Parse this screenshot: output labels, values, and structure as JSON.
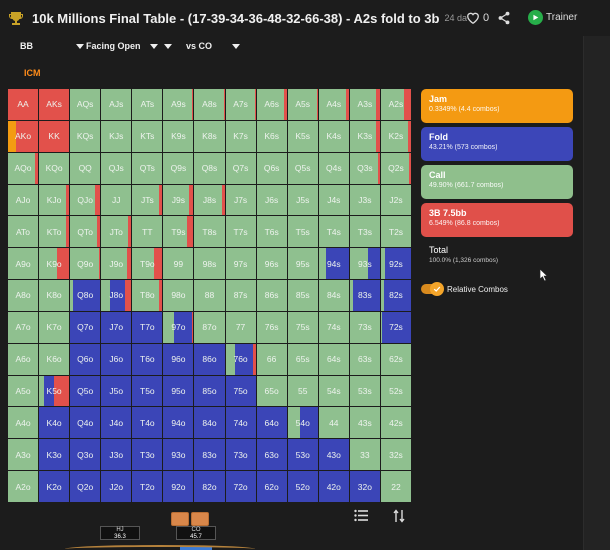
{
  "header": {
    "title": "10k Millions Final Table - (17-39-34-36-48-32-66-38) - A2s fold to 3b",
    "age": "24 da",
    "like_count": "0",
    "trainer_label": "Trainer"
  },
  "filters": [
    {
      "label": "BB"
    },
    {
      "label": "Facing Open"
    },
    {
      "label": "vs CO"
    }
  ],
  "mode_label": "ICM",
  "colors": {
    "jam": "#f39c12",
    "fold": "#3b45b7",
    "call": "#8fc08f",
    "raise": "#e2514b"
  },
  "actions": [
    {
      "name": "Jam",
      "stats": "0.3349% (4.4 combos)",
      "color": "#f49a12"
    },
    {
      "name": "Fold",
      "stats": "43.21% (573 combos)",
      "color": "#3c46b8"
    },
    {
      "name": "Call",
      "stats": "49.90% (661.7 combos)",
      "color": "#8fbf8c"
    },
    {
      "name": "3B 7.5bb",
      "stats": "6.549% (86.8 combos)",
      "color": "#e0504a"
    }
  ],
  "total": {
    "name": "Total",
    "stats": "100.0% (1,326 combos)"
  },
  "toggle": {
    "label": "Relative Combos",
    "on": true
  },
  "grid": {
    "rows": [
      [
        "AA",
        "AKs",
        "AQs",
        "AJs",
        "ATs",
        "A9s",
        "A8s",
        "A7s",
        "A6s",
        "A5s",
        "A4s",
        "A3s",
        "A2s"
      ],
      [
        "AKo",
        "KK",
        "KQs",
        "KJs",
        "KTs",
        "K9s",
        "K8s",
        "K7s",
        "K6s",
        "K5s",
        "K4s",
        "K3s",
        "K2s"
      ],
      [
        "AQo",
        "KQo",
        "QQ",
        "QJs",
        "QTs",
        "Q9s",
        "Q8s",
        "Q7s",
        "Q6s",
        "Q5s",
        "Q4s",
        "Q3s",
        "Q2s"
      ],
      [
        "AJo",
        "KJo",
        "QJo",
        "JJ",
        "JTs",
        "J9s",
        "J8s",
        "J7s",
        "J6s",
        "J5s",
        "J4s",
        "J3s",
        "J2s"
      ],
      [
        "ATo",
        "KTo",
        "QTo",
        "JTo",
        "TT",
        "T9s",
        "T8s",
        "T7s",
        "T6s",
        "T5s",
        "T4s",
        "T3s",
        "T2s"
      ],
      [
        "A9o",
        "K9o",
        "Q9o",
        "J9o",
        "T9o",
        "99",
        "98s",
        "97s",
        "96s",
        "95s",
        "94s",
        "93s",
        "92s"
      ],
      [
        "A8o",
        "K8o",
        "Q8o",
        "J8o",
        "T8o",
        "98o",
        "88",
        "87s",
        "86s",
        "85s",
        "84s",
        "83s",
        "82s"
      ],
      [
        "A7o",
        "K7o",
        "Q7o",
        "J7o",
        "T7o",
        "97o",
        "87o",
        "77",
        "76s",
        "75s",
        "74s",
        "73s",
        "72s"
      ],
      [
        "A6o",
        "K6o",
        "Q6o",
        "J6o",
        "T6o",
        "96o",
        "86o",
        "76o",
        "66",
        "65s",
        "64s",
        "63s",
        "62s"
      ],
      [
        "A5o",
        "K5o",
        "Q5o",
        "J5o",
        "T5o",
        "95o",
        "85o",
        "75o",
        "65o",
        "55",
        "54s",
        "53s",
        "52s"
      ],
      [
        "A4o",
        "K4o",
        "Q4o",
        "J4o",
        "T4o",
        "94o",
        "84o",
        "74o",
        "64o",
        "54o",
        "44",
        "43s",
        "42s"
      ],
      [
        "A3o",
        "K3o",
        "Q3o",
        "J3o",
        "T3o",
        "93o",
        "83o",
        "73o",
        "63o",
        "53o",
        "43o",
        "33",
        "32s"
      ],
      [
        "A2o",
        "K2o",
        "Q2o",
        "J2o",
        "T2o",
        "92o",
        "82o",
        "72o",
        "62o",
        "52o",
        "42o",
        "32o",
        "22"
      ]
    ],
    "mix": [
      [
        [
          [
            "r",
            1
          ]
        ],
        [
          [
            "r",
            1
          ]
        ],
        [
          [
            "c",
            0.98
          ],
          [
            "r",
            0.02
          ]
        ],
        [
          [
            "c",
            0.98
          ],
          [
            "r",
            0.02
          ]
        ],
        [
          [
            "c",
            0.98
          ],
          [
            "r",
            0.02
          ]
        ],
        [
          [
            "c",
            0.95
          ],
          [
            "r",
            0.05
          ]
        ],
        [
          [
            "c",
            0.97
          ],
          [
            "r",
            0.03
          ]
        ],
        [
          [
            "c",
            0.97
          ],
          [
            "r",
            0.03
          ]
        ],
        [
          [
            "c",
            0.9
          ],
          [
            "r",
            0.1
          ]
        ],
        [
          [
            "c",
            0.96
          ],
          [
            "r",
            0.04
          ]
        ],
        [
          [
            "c",
            0.9
          ],
          [
            "r",
            0.1
          ]
        ],
        [
          [
            "c",
            0.88
          ],
          [
            "r",
            0.12
          ]
        ],
        [
          [
            "c",
            0.78
          ],
          [
            "r",
            0.22
          ]
        ]
      ],
      [
        [
          [
            "j",
            0.25
          ],
          [
            "r",
            0.75
          ]
        ],
        [
          [
            "r",
            1
          ]
        ],
        [
          [
            "c",
            1
          ]
        ],
        [
          [
            "c",
            1
          ]
        ],
        [
          [
            "c",
            1
          ]
        ],
        [
          [
            "c",
            1
          ]
        ],
        [
          [
            "c",
            1
          ]
        ],
        [
          [
            "c",
            1
          ]
        ],
        [
          [
            "c",
            1
          ]
        ],
        [
          [
            "c",
            1
          ]
        ],
        [
          [
            "c",
            1
          ]
        ],
        [
          [
            "c",
            0.88
          ],
          [
            "r",
            0.12
          ]
        ],
        [
          [
            "c",
            0.9
          ],
          [
            "r",
            0.1
          ]
        ]
      ],
      [
        [
          [
            "c",
            0.9
          ],
          [
            "r",
            0.1
          ]
        ],
        [
          [
            "c",
            1
          ]
        ],
        [
          [
            "c",
            1
          ]
        ],
        [
          [
            "c",
            1
          ]
        ],
        [
          [
            "c",
            1
          ]
        ],
        [
          [
            "c",
            1
          ]
        ],
        [
          [
            "c",
            1
          ]
        ],
        [
          [
            "c",
            1
          ]
        ],
        [
          [
            "c",
            1
          ]
        ],
        [
          [
            "c",
            1
          ]
        ],
        [
          [
            "c",
            1
          ]
        ],
        [
          [
            "c",
            0.93
          ],
          [
            "r",
            0.07
          ]
        ],
        [
          [
            "c",
            0.92
          ],
          [
            "r",
            0.08
          ]
        ]
      ],
      [
        [
          [
            "c",
            1
          ]
        ],
        [
          [
            "c",
            0.9
          ],
          [
            "r",
            0.1
          ]
        ],
        [
          [
            "c",
            0.83
          ],
          [
            "r",
            0.17
          ]
        ],
        [
          [
            "c",
            1
          ]
        ],
        [
          [
            "c",
            0.9
          ],
          [
            "r",
            0.1
          ]
        ],
        [
          [
            "c",
            0.85
          ],
          [
            "r",
            0.15
          ]
        ],
        [
          [
            "c",
            0.93
          ],
          [
            "r",
            0.07
          ]
        ],
        [
          [
            "c",
            1
          ]
        ],
        [
          [
            "c",
            1
          ]
        ],
        [
          [
            "c",
            1
          ]
        ],
        [
          [
            "c",
            1
          ]
        ],
        [
          [
            "c",
            1
          ]
        ],
        [
          [
            "c",
            1
          ]
        ]
      ],
      [
        [
          [
            "c",
            1
          ]
        ],
        [
          [
            "c",
            0.9
          ],
          [
            "r",
            0.1
          ]
        ],
        [
          [
            "c",
            0.9
          ],
          [
            "r",
            0.1
          ]
        ],
        [
          [
            "c",
            0.9
          ],
          [
            "r",
            0.1
          ]
        ],
        [
          [
            "c",
            1
          ]
        ],
        [
          [
            "c",
            0.8
          ],
          [
            "r",
            0.2
          ]
        ],
        [
          [
            "c",
            1
          ]
        ],
        [
          [
            "c",
            1
          ]
        ],
        [
          [
            "c",
            1
          ]
        ],
        [
          [
            "c",
            1
          ]
        ],
        [
          [
            "c",
            1
          ]
        ],
        [
          [
            "c",
            1
          ]
        ],
        [
          [
            "c",
            1
          ]
        ]
      ],
      [
        [
          [
            "c",
            1
          ]
        ],
        [
          [
            "c",
            0.6
          ],
          [
            "r",
            0.4
          ]
        ],
        [
          [
            "c",
            0.95
          ],
          [
            "r",
            0.05
          ]
        ],
        [
          [
            "c",
            0.85
          ],
          [
            "r",
            0.15
          ]
        ],
        [
          [
            "c",
            0.72
          ],
          [
            "r",
            0.28
          ]
        ],
        [
          [
            "c",
            1
          ]
        ],
        [
          [
            "c",
            1
          ]
        ],
        [
          [
            "c",
            1
          ]
        ],
        [
          [
            "c",
            1
          ]
        ],
        [
          [
            "c",
            1
          ]
        ],
        [
          [
            "c",
            0.25
          ],
          [
            "f",
            0.75
          ]
        ],
        [
          [
            "c",
            0.6
          ],
          [
            "f",
            0.4
          ]
        ],
        [
          [
            "c",
            0.15
          ],
          [
            "f",
            0.85
          ]
        ]
      ],
      [
        [
          [
            "c",
            1
          ]
        ],
        [
          [
            "c",
            1
          ]
        ],
        [
          [
            "c",
            0.1
          ],
          [
            "f",
            0.9
          ]
        ],
        [
          [
            "c",
            0.3
          ],
          [
            "f",
            0.5
          ],
          [
            "r",
            0.2
          ]
        ],
        [
          [
            "c",
            0.9
          ],
          [
            "r",
            0.1
          ]
        ],
        [
          [
            "c",
            1
          ]
        ],
        [
          [
            "c",
            1
          ]
        ],
        [
          [
            "c",
            1
          ]
        ],
        [
          [
            "c",
            1
          ]
        ],
        [
          [
            "c",
            1
          ]
        ],
        [
          [
            "c",
            1
          ]
        ],
        [
          [
            "c",
            0.1
          ],
          [
            "f",
            0.9
          ]
        ],
        [
          [
            "c",
            0.1
          ],
          [
            "f",
            0.9
          ]
        ]
      ],
      [
        [
          [
            "c",
            1
          ]
        ],
        [
          [
            "c",
            1
          ]
        ],
        [
          [
            "f",
            1
          ]
        ],
        [
          [
            "f",
            1
          ]
        ],
        [
          [
            "f",
            1
          ]
        ],
        [
          [
            "c",
            0.35
          ],
          [
            "f",
            0.6
          ],
          [
            "r",
            0.05
          ]
        ],
        [
          [
            "c",
            1
          ]
        ],
        [
          [
            "c",
            1
          ]
        ],
        [
          [
            "c",
            1
          ]
        ],
        [
          [
            "c",
            1
          ]
        ],
        [
          [
            "c",
            1
          ]
        ],
        [
          [
            "c",
            1
          ]
        ],
        [
          [
            "c",
            0.05
          ],
          [
            "f",
            0.95
          ]
        ]
      ],
      [
        [
          [
            "c",
            1
          ]
        ],
        [
          [
            "c",
            1
          ]
        ],
        [
          [
            "f",
            1
          ]
        ],
        [
          [
            "f",
            1
          ]
        ],
        [
          [
            "f",
            1
          ]
        ],
        [
          [
            "f",
            1
          ]
        ],
        [
          [
            "f",
            1
          ]
        ],
        [
          [
            "c",
            0.3
          ],
          [
            "f",
            0.6
          ],
          [
            "r",
            0.1
          ]
        ],
        [
          [
            "c",
            1
          ]
        ],
        [
          [
            "c",
            1
          ]
        ],
        [
          [
            "c",
            1
          ]
        ],
        [
          [
            "c",
            1
          ]
        ],
        [
          [
            "c",
            1
          ]
        ]
      ],
      [
        [
          [
            "c",
            1
          ]
        ],
        [
          [
            "c",
            0.15
          ],
          [
            "f",
            0.35
          ],
          [
            "r",
            0.5
          ]
        ],
        [
          [
            "f",
            1
          ]
        ],
        [
          [
            "f",
            1
          ]
        ],
        [
          [
            "f",
            1
          ]
        ],
        [
          [
            "f",
            1
          ]
        ],
        [
          [
            "f",
            1
          ]
        ],
        [
          [
            "f",
            1
          ]
        ],
        [
          [
            "c",
            1
          ]
        ],
        [
          [
            "c",
            1
          ]
        ],
        [
          [
            "c",
            1
          ]
        ],
        [
          [
            "c",
            1
          ]
        ],
        [
          [
            "c",
            1
          ]
        ]
      ],
      [
        [
          [
            "c",
            1
          ]
        ],
        [
          [
            "f",
            1
          ]
        ],
        [
          [
            "f",
            1
          ]
        ],
        [
          [
            "f",
            1
          ]
        ],
        [
          [
            "f",
            1
          ]
        ],
        [
          [
            "f",
            1
          ]
        ],
        [
          [
            "f",
            1
          ]
        ],
        [
          [
            "f",
            1
          ]
        ],
        [
          [
            "f",
            1
          ]
        ],
        [
          [
            "c",
            0.4
          ],
          [
            "f",
            0.6
          ]
        ],
        [
          [
            "c",
            1
          ]
        ],
        [
          [
            "c",
            1
          ]
        ],
        [
          [
            "c",
            1
          ]
        ]
      ],
      [
        [
          [
            "c",
            1
          ]
        ],
        [
          [
            "f",
            1
          ]
        ],
        [
          [
            "f",
            1
          ]
        ],
        [
          [
            "f",
            1
          ]
        ],
        [
          [
            "f",
            1
          ]
        ],
        [
          [
            "f",
            1
          ]
        ],
        [
          [
            "f",
            1
          ]
        ],
        [
          [
            "f",
            1
          ]
        ],
        [
          [
            "f",
            1
          ]
        ],
        [
          [
            "f",
            1
          ]
        ],
        [
          [
            "f",
            1
          ]
        ],
        [
          [
            "c",
            1
          ]
        ],
        [
          [
            "c",
            1
          ]
        ]
      ],
      [
        [
          [
            "c",
            1
          ]
        ],
        [
          [
            "f",
            1
          ]
        ],
        [
          [
            "f",
            1
          ]
        ],
        [
          [
            "f",
            1
          ]
        ],
        [
          [
            "f",
            1
          ]
        ],
        [
          [
            "f",
            1
          ]
        ],
        [
          [
            "f",
            1
          ]
        ],
        [
          [
            "f",
            1
          ]
        ],
        [
          [
            "f",
            1
          ]
        ],
        [
          [
            "f",
            1
          ]
        ],
        [
          [
            "f",
            1
          ]
        ],
        [
          [
            "f",
            1
          ]
        ],
        [
          [
            "c",
            1
          ]
        ]
      ]
    ]
  },
  "seats": [
    {
      "name": "HJ",
      "stack": "36.3"
    },
    {
      "name": "CO",
      "stack": "45.7"
    }
  ],
  "icons": [
    "trophy-icon",
    "heart-icon",
    "share-icon",
    "play-icon",
    "list-icon",
    "sort-icon",
    "cursor-icon"
  ]
}
